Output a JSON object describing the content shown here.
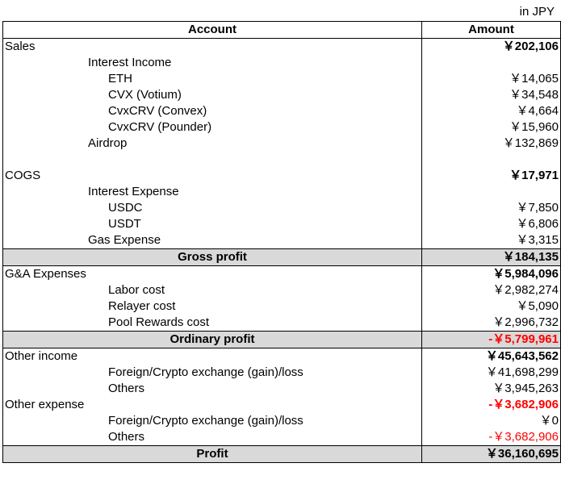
{
  "unit_label": "in JPY",
  "headers": {
    "account": "Account",
    "amount": "Amount"
  },
  "rows": [
    {
      "label": "Sales",
      "amount": "￥202,106"
    },
    {
      "label": "Interest Income",
      "amount": ""
    },
    {
      "label": "ETH",
      "amount": "￥14,065"
    },
    {
      "label": "CVX (Votium)",
      "amount": "￥34,548"
    },
    {
      "label": "CvxCRV (Convex)",
      "amount": "￥4,664"
    },
    {
      "label": "CvxCRV (Pounder)",
      "amount": "￥15,960"
    },
    {
      "label": "Airdrop",
      "amount": "￥132,869"
    },
    {
      "label": "",
      "amount": ""
    },
    {
      "label": "COGS",
      "amount": "￥17,971"
    },
    {
      "label": "Interest Expense",
      "amount": ""
    },
    {
      "label": "USDC",
      "amount": "￥7,850"
    },
    {
      "label": "USDT",
      "amount": "￥6,806"
    },
    {
      "label": "Gas Expense",
      "amount": "￥3,315"
    },
    {
      "label": "Gross profit",
      "amount": "￥184,135"
    },
    {
      "label": "G&A Expenses",
      "amount": "￥5,984,096"
    },
    {
      "label": "Labor cost",
      "amount": "￥2,982,274"
    },
    {
      "label": "Relayer cost",
      "amount": "￥5,090"
    },
    {
      "label": "Pool Rewards cost",
      "amount": "￥2,996,732"
    },
    {
      "label": "Ordinary profit",
      "amount": "-￥5,799,961"
    },
    {
      "label": "Other income",
      "amount": "￥45,643,562"
    },
    {
      "label": "Foreign/Crypto exchange (gain)/loss",
      "amount": "￥41,698,299"
    },
    {
      "label": "Others",
      "amount": "￥3,945,263"
    },
    {
      "label": "Other expense",
      "amount": "-￥3,682,906"
    },
    {
      "label": "Foreign/Crypto exchange (gain)/loss",
      "amount": "￥0"
    },
    {
      "label": "Others",
      "amount": "-￥3,682,906"
    },
    {
      "label": "Profit",
      "amount": "￥36,160,695"
    }
  ],
  "colors": {
    "summary_fill": "#d9d9d9",
    "negative": "#ff0000"
  }
}
